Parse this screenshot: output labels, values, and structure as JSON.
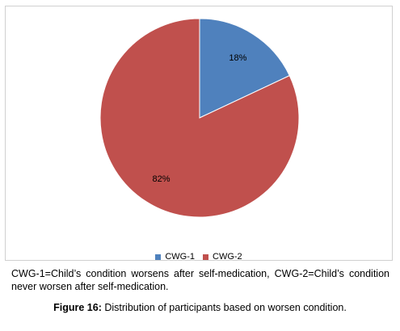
{
  "chart_data": {
    "type": "pie",
    "categories": [
      "CWG-1",
      "CWG-2"
    ],
    "values": [
      18,
      82
    ],
    "value_labels": [
      "18%",
      "82%"
    ],
    "colors": [
      "#4F81BD",
      "#C0504D"
    ],
    "legend_placement": "bottom"
  },
  "caption": {
    "note": "CWG-1=Child’s condition worsens after self-medication, CWG-2=Child’s condition never worsen after self-medication.",
    "figure_label": "Figure 16:",
    "figure_text": " Distribution of participants based on worsen condition."
  }
}
